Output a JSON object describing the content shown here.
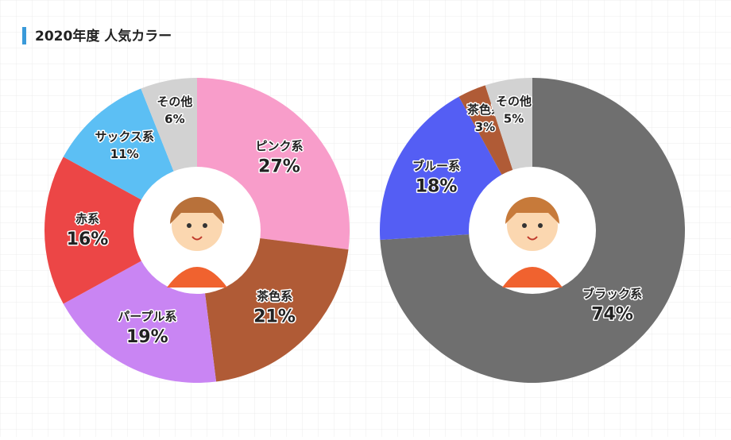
{
  "title": "2020年度 人気カラー",
  "chart_data": [
    {
      "type": "pie",
      "categories": [
        "ピンク系",
        "茶色系",
        "パープル系",
        "赤系",
        "サックス系",
        "その他"
      ],
      "values": [
        27,
        21,
        19,
        16,
        11,
        6
      ],
      "value_labels": [
        "27%",
        "21%",
        "19%",
        "16%",
        "11%",
        "6%"
      ],
      "colors": [
        "#f89dca",
        "#b05b36",
        "#c985f3",
        "#ec4646",
        "#5cbff4",
        "#d2d2d2"
      ]
    },
    {
      "type": "pie",
      "categories": [
        "ブラック系",
        "ブルー系",
        "茶色系",
        "その他"
      ],
      "values": [
        74,
        18,
        3,
        5
      ],
      "value_labels": [
        "74%",
        "18%",
        "3%",
        "5%"
      ],
      "colors": [
        "#6f6f6f",
        "#545ef4",
        "#b05b36",
        "#d2d2d2"
      ]
    }
  ]
}
